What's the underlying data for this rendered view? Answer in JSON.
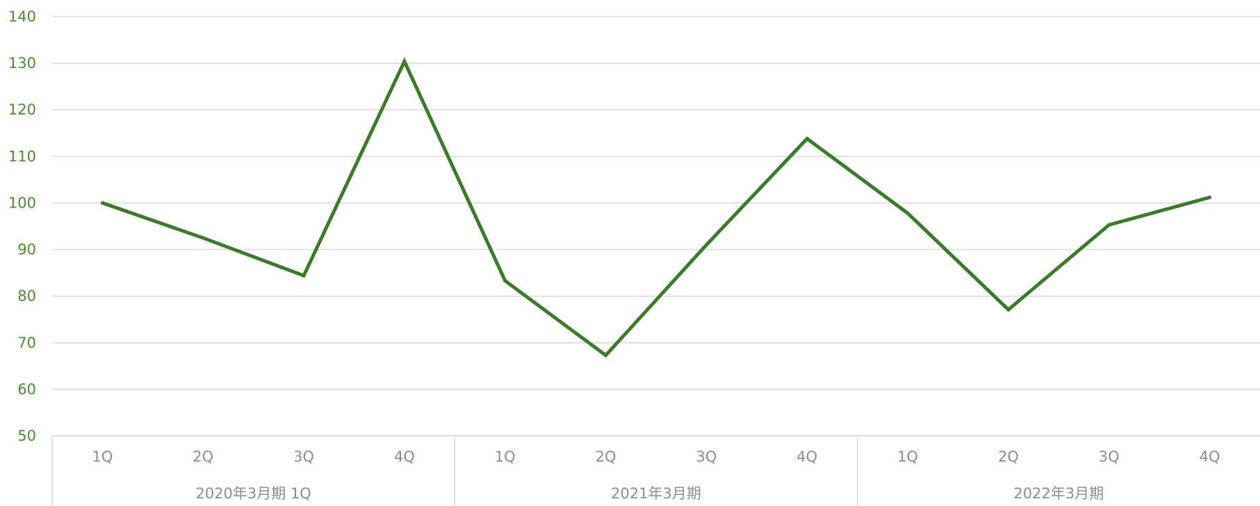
{
  "chart_data": {
    "type": "line",
    "ylim": [
      50,
      140
    ],
    "y_ticks": [
      "140",
      "130",
      "120",
      "110",
      "100",
      "90",
      "80",
      "70",
      "60",
      "50"
    ],
    "groups": [
      {
        "label": "2020年3月期 1Q",
        "categories": [
          "1Q",
          "2Q",
          "3Q",
          "4Q"
        ]
      },
      {
        "label": "2021年3月期",
        "categories": [
          "1Q",
          "2Q",
          "3Q",
          "4Q"
        ]
      },
      {
        "label": "2022年3月期",
        "categories": [
          "1Q",
          "2Q",
          "3Q",
          "4Q"
        ]
      }
    ],
    "series": [
      {
        "values": [
          100,
          92.5,
          84.4,
          130.4,
          83.3,
          67.3,
          91.0,
          113.8,
          97.8,
          77.1,
          95.3,
          101.2
        ]
      }
    ],
    "grid": true,
    "legend": "none"
  },
  "colors": {
    "line": "#3a7a2a",
    "grid": "#d9d9d9",
    "y_tick_text": "#4e8a35",
    "x_tick_text": "#8c8c8c"
  }
}
